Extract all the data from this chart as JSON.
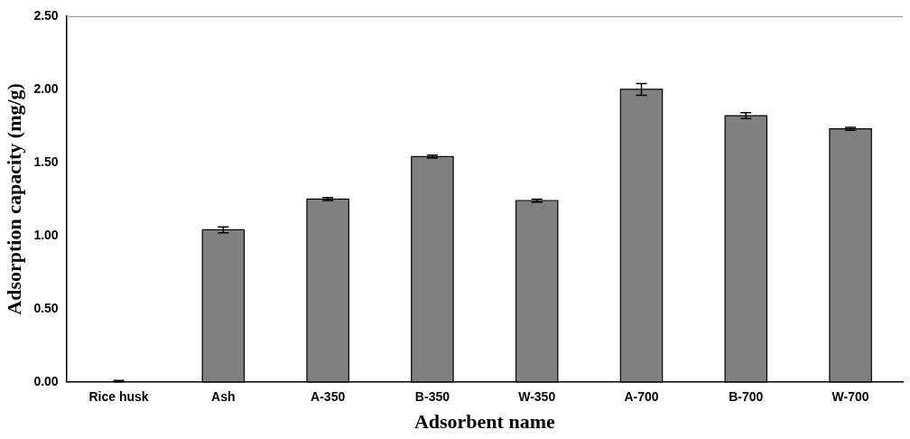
{
  "chart_data": {
    "type": "bar",
    "xlabel": "Adsorbent name",
    "ylabel": "Adsorption capacity (mg/g)",
    "categories": [
      "Rice husk",
      "Ash",
      "A-350",
      "B-350",
      "W-350",
      "A-700",
      "B-700",
      "W-700"
    ],
    "values": [
      0.0,
      1.04,
      1.25,
      1.54,
      1.24,
      2.0,
      1.82,
      1.73
    ],
    "errors": [
      [
        0,
        0.01
      ],
      0.02,
      0.01,
      0.01,
      0.01,
      0.04,
      0.02,
      0.01
    ],
    "color": "#808080",
    "ylim": [
      0,
      2.5
    ],
    "yticks": [
      {
        "value": 0,
        "label": "0.00"
      },
      {
        "value": 0.5,
        "label": "0.50"
      },
      {
        "value": 1,
        "label": "1.00"
      },
      {
        "value": 1.5,
        "label": "1.50"
      },
      {
        "value": 2,
        "label": "2.00"
      },
      {
        "value": 2.5,
        "label": "2.50"
      }
    ],
    "grid": false,
    "legend": false
  }
}
